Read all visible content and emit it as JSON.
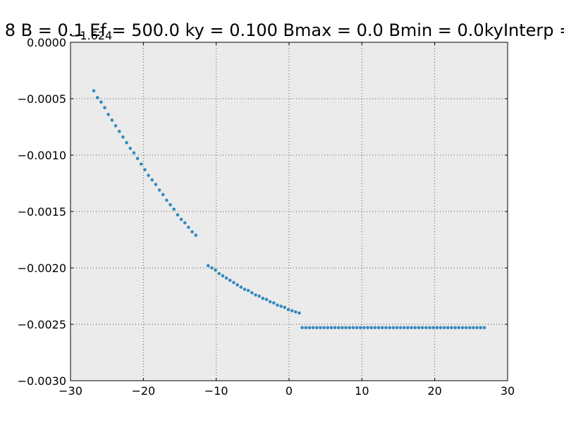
{
  "chart_data": {
    "type": "scatter",
    "title": "8 B = 0.1 Ef = 500.0 ky = 0.100 Bmax = 0.0 Bmin = 0.0kyInterp =",
    "y_offset_label": "−1.624",
    "xlim": [
      -30,
      30
    ],
    "ylim": [
      -0.003,
      0.0
    ],
    "x_ticks": [
      -30,
      -20,
      -10,
      0,
      10,
      20,
      30
    ],
    "y_ticks": [
      0.0,
      -0.0005,
      -0.001,
      -0.0015,
      -0.002,
      -0.0025,
      -0.003
    ],
    "x_tick_labels": [
      "−30",
      "−20",
      "−10",
      "0",
      "10",
      "20",
      "30"
    ],
    "y_tick_labels": [
      "0.0000",
      "−0.0005",
      "−0.0010",
      "−0.0015",
      "−0.0020",
      "−0.0025",
      "−0.0030"
    ],
    "grid": true,
    "colors": {
      "marker": "#348abd",
      "plot_background": "#ebebeb",
      "grid": "#555555"
    },
    "series": [
      {
        "points": [
          [
            -26.8,
            -0.00043
          ],
          [
            -26.3,
            -0.00049
          ],
          [
            -25.8,
            -0.00053
          ],
          [
            -25.3,
            -0.00058
          ],
          [
            -24.8,
            -0.00064
          ],
          [
            -24.3,
            -0.00069
          ],
          [
            -23.8,
            -0.00074
          ],
          [
            -23.3,
            -0.00079
          ],
          [
            -22.8,
            -0.00084
          ],
          [
            -22.3,
            -0.00089
          ],
          [
            -21.8,
            -0.00094
          ],
          [
            -21.3,
            -0.00098
          ],
          [
            -20.8,
            -0.00103
          ],
          [
            -20.3,
            -0.00108
          ],
          [
            -19.8,
            -0.00113
          ],
          [
            -19.3,
            -0.00118
          ],
          [
            -18.8,
            -0.00122
          ],
          [
            -18.3,
            -0.00126
          ],
          [
            -17.8,
            -0.00131
          ],
          [
            -17.3,
            -0.00135
          ],
          [
            -16.8,
            -0.0014
          ],
          [
            -16.3,
            -0.00144
          ],
          [
            -15.8,
            -0.00148
          ],
          [
            -15.3,
            -0.00153
          ],
          [
            -14.8,
            -0.00157
          ],
          [
            -14.3,
            -0.0016
          ],
          [
            -13.8,
            -0.00164
          ],
          [
            -13.3,
            -0.00168
          ],
          [
            -12.8,
            -0.00171
          ],
          [
            -11.1,
            -0.00198
          ],
          [
            -10.6,
            -0.002
          ],
          [
            -10.1,
            -0.00202
          ],
          [
            -9.6,
            -0.00205
          ],
          [
            -9.1,
            -0.00207
          ],
          [
            -8.6,
            -0.00209
          ],
          [
            -8.1,
            -0.00211
          ],
          [
            -7.6,
            -0.00213
          ],
          [
            -7.1,
            -0.00215
          ],
          [
            -6.6,
            -0.00217
          ],
          [
            -6.1,
            -0.00219
          ],
          [
            -5.6,
            -0.0022
          ],
          [
            -5.1,
            -0.00222
          ],
          [
            -4.6,
            -0.00224
          ],
          [
            -4.1,
            -0.00225
          ],
          [
            -3.6,
            -0.00227
          ],
          [
            -3.1,
            -0.00228
          ],
          [
            -2.6,
            -0.0023
          ],
          [
            -2.1,
            -0.00231
          ],
          [
            -1.6,
            -0.00233
          ],
          [
            -1.1,
            -0.00234
          ],
          [
            -0.6,
            -0.00235
          ],
          [
            -0.1,
            -0.00237
          ],
          [
            0.4,
            -0.00238
          ],
          [
            0.9,
            -0.00239
          ],
          [
            1.4,
            -0.0024
          ],
          [
            1.8,
            -0.00253
          ],
          [
            2.3,
            -0.00253
          ],
          [
            2.8,
            -0.00253
          ],
          [
            3.3,
            -0.00253
          ],
          [
            3.8,
            -0.00253
          ],
          [
            4.3,
            -0.00253
          ],
          [
            4.8,
            -0.00253
          ],
          [
            5.3,
            -0.00253
          ],
          [
            5.8,
            -0.00253
          ],
          [
            6.3,
            -0.00253
          ],
          [
            6.8,
            -0.00253
          ],
          [
            7.3,
            -0.00253
          ],
          [
            7.8,
            -0.00253
          ],
          [
            8.3,
            -0.00253
          ],
          [
            8.8,
            -0.00253
          ],
          [
            9.3,
            -0.00253
          ],
          [
            9.8,
            -0.00253
          ],
          [
            10.3,
            -0.00253
          ],
          [
            10.8,
            -0.00253
          ],
          [
            11.3,
            -0.00253
          ],
          [
            11.8,
            -0.00253
          ],
          [
            12.3,
            -0.00253
          ],
          [
            12.8,
            -0.00253
          ],
          [
            13.3,
            -0.00253
          ],
          [
            13.8,
            -0.00253
          ],
          [
            14.3,
            -0.00253
          ],
          [
            14.8,
            -0.00253
          ],
          [
            15.3,
            -0.00253
          ],
          [
            15.8,
            -0.00253
          ],
          [
            16.3,
            -0.00253
          ],
          [
            16.8,
            -0.00253
          ],
          [
            17.3,
            -0.00253
          ],
          [
            17.8,
            -0.00253
          ],
          [
            18.3,
            -0.00253
          ],
          [
            18.8,
            -0.00253
          ],
          [
            19.3,
            -0.00253
          ],
          [
            19.8,
            -0.00253
          ],
          [
            20.3,
            -0.00253
          ],
          [
            20.8,
            -0.00253
          ],
          [
            21.3,
            -0.00253
          ],
          [
            21.8,
            -0.00253
          ],
          [
            22.3,
            -0.00253
          ],
          [
            22.8,
            -0.00253
          ],
          [
            23.3,
            -0.00253
          ],
          [
            23.8,
            -0.00253
          ],
          [
            24.3,
            -0.00253
          ],
          [
            24.8,
            -0.00253
          ],
          [
            25.3,
            -0.00253
          ],
          [
            25.8,
            -0.00253
          ],
          [
            26.3,
            -0.00253
          ],
          [
            26.8,
            -0.00253
          ]
        ]
      }
    ]
  }
}
